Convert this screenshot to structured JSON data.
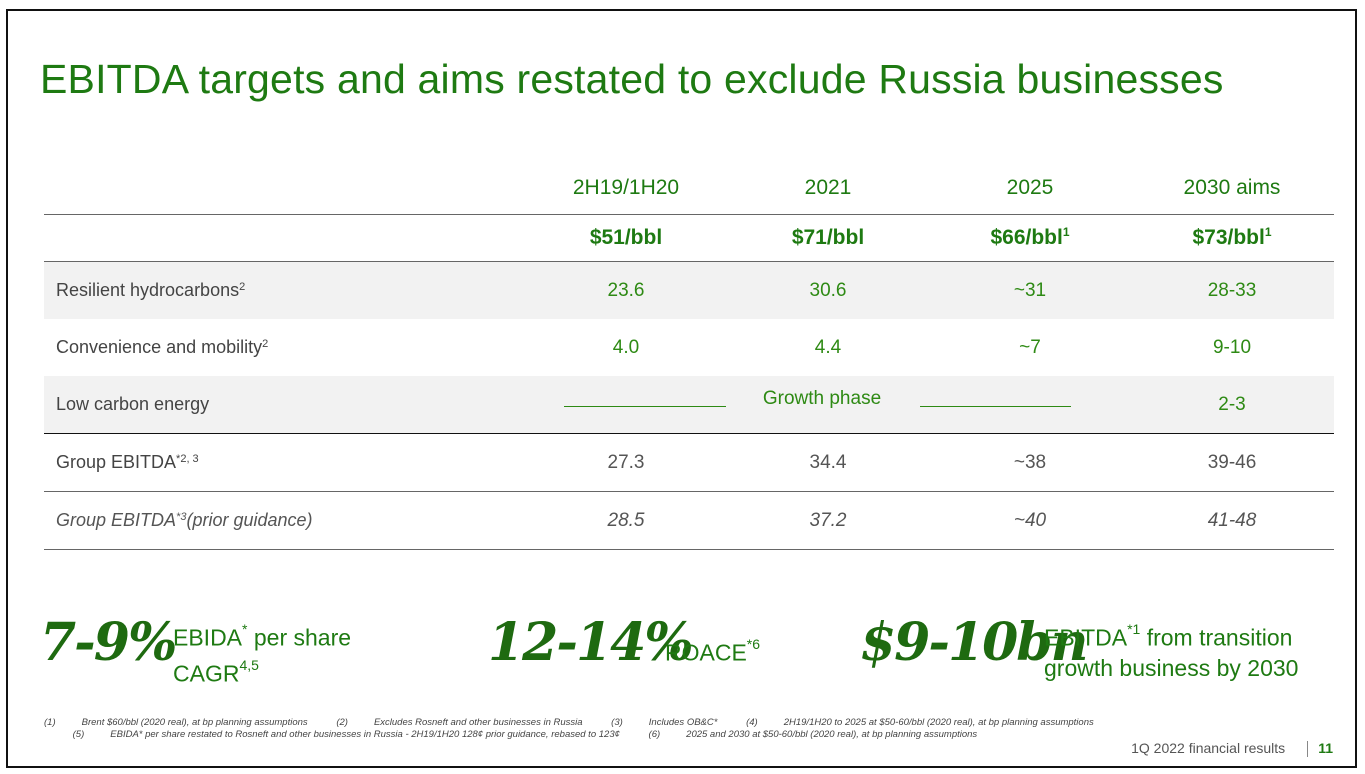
{
  "title": "EBITDA targets and aims restated to exclude Russia businesses",
  "table": {
    "columns": [
      "2H19/1H20",
      "2021",
      "2025",
      "2030 aims"
    ],
    "prices": [
      {
        "value": "$51/bbl",
        "sup": ""
      },
      {
        "value": "$71/bbl",
        "sup": ""
      },
      {
        "value": "$66/bbl",
        "sup": "1"
      },
      {
        "value": "$73/bbl",
        "sup": "1"
      }
    ],
    "rows": [
      {
        "label": "Resilient hydrocarbons",
        "sup": "2",
        "values": [
          "23.6",
          "30.6",
          "~31",
          "28-33"
        ]
      },
      {
        "label": "Convenience and mobility",
        "sup": "2",
        "values": [
          "4.0",
          "4.4",
          "~7",
          "9-10"
        ]
      },
      {
        "label": "Low carbon energy",
        "sup": "",
        "growth": "Growth phase",
        "last": "2-3"
      },
      {
        "label": "Group EBITDA",
        "sup": "*2, 3",
        "values": [
          "27.3",
          "34.4",
          "~38",
          "39-46"
        ]
      },
      {
        "label": "Group EBITDA",
        "sup": "*3",
        "suffix": " (prior guidance)",
        "values": [
          "28.5",
          "37.2",
          "~40",
          "41-48"
        ]
      }
    ]
  },
  "kpis": [
    {
      "big": "7-9%",
      "line1": "EBIDA",
      "line1_sup": "*",
      "line1_rest": " per share",
      "line2": "CAGR",
      "line2_sup": "4,5"
    },
    {
      "big": "12-14%",
      "line1": "ROACE",
      "line1_sup": "*6"
    },
    {
      "big": "$9-10bn",
      "line1": "EBITDA",
      "line1_sup": "*1",
      "line1_rest": " from transition",
      "line2": "growth business by 2030"
    }
  ],
  "footnotes": {
    "n1": "(1)",
    "t1": "Brent $60/bbl (2020 real), at bp planning assumptions",
    "n2": "(2)",
    "t2": "Excludes Rosneft and other businesses in Russia",
    "n3": "(3)",
    "t3": "Includes OB&C*",
    "n4": "(4)",
    "t4": "2H19/1H20 to 2025 at $50-60/bbl (2020 real), at bp planning assumptions",
    "n5": "(5)",
    "t5": "EBIDA* per share restated to Rosneft and other businesses in Russia - 2H19/1H20 128¢ prior guidance, rebased to 123¢",
    "n6": "(6)",
    "t6": "2025 and 2030 at $50-60/bbl (2020 real), at bp planning assumptions"
  },
  "footer": {
    "label": "1Q 2022 financial results",
    "page": "11"
  },
  "colors": {
    "brand_green": "#1e7a12",
    "value_green": "#2e8a14",
    "row_shade": "#f2f2f2"
  }
}
